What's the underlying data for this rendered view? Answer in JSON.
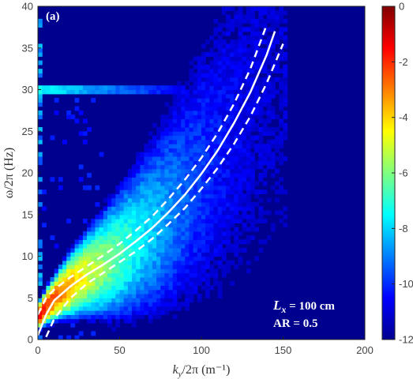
{
  "chart_data": {
    "type": "heatmap",
    "panel_label": "(a)",
    "xlabel": "k_y/2π (m⁻¹)",
    "ylabel": "ω/2π (Hz)",
    "xlim": [
      0,
      200
    ],
    "ylim": [
      0,
      40
    ],
    "x_ticks": [
      0,
      50,
      100,
      150,
      200
    ],
    "y_ticks": [
      0,
      5,
      10,
      15,
      20,
      25,
      30,
      35,
      40
    ],
    "colorbar": {
      "min": -12,
      "max": 0,
      "ticks": [
        0,
        -2,
        -4,
        -6,
        -8,
        -10,
        -12
      ],
      "colormap": "jet"
    },
    "annotations": [
      "L_x = 100 cm",
      "AR = 0.5"
    ],
    "background_level": -11.5,
    "ridge": {
      "x": [
        1,
        5,
        10,
        20,
        30,
        40,
        50,
        60,
        70,
        80,
        90,
        100,
        110,
        120,
        130,
        140,
        145
      ],
      "y": [
        3.0,
        4.0,
        5.0,
        6.6,
        7.9,
        9.0,
        10.3,
        11.8,
        13.4,
        15.3,
        17.4,
        19.8,
        22.5,
        25.5,
        29.0,
        33.5,
        36.5
      ],
      "peak_level": [
        -1.5,
        -1.8,
        -2.6,
        -3.6,
        -4.8,
        -5.8,
        -6.6,
        -7.4,
        -8.1,
        -8.8,
        -9.4,
        -9.9,
        -10.3,
        -10.6,
        -10.8,
        -11.0,
        -11.1
      ]
    },
    "horizontal_line": {
      "y": 30,
      "x_range": [
        0,
        90
      ],
      "level": -7.5
    },
    "theory_curve": {
      "x": [
        0,
        5,
        10,
        20,
        30,
        40,
        50,
        60,
        70,
        80,
        90,
        100,
        110,
        120,
        130,
        140,
        145
      ],
      "y": [
        0.5,
        3.0,
        4.7,
        6.4,
        7.8,
        9.0,
        10.3,
        11.8,
        13.4,
        15.3,
        17.4,
        19.9,
        22.7,
        26.0,
        29.7,
        34.2,
        37.0
      ],
      "color": "#ffffff"
    },
    "theory_upper": {
      "x": [
        0,
        5,
        10,
        20,
        30,
        40,
        50,
        60,
        70,
        80,
        90,
        100,
        110,
        120,
        130,
        140
      ],
      "y": [
        3.0,
        5.0,
        6.0,
        7.5,
        8.8,
        10.1,
        11.5,
        13.1,
        14.8,
        16.9,
        19.2,
        21.8,
        24.8,
        28.3,
        32.5,
        37.8
      ],
      "color": "#ffffff"
    },
    "theory_lower": {
      "x": [
        5,
        10,
        20,
        30,
        40,
        50,
        60,
        70,
        80,
        90,
        100,
        110,
        120,
        130,
        140,
        150
      ],
      "y": [
        0.3,
        2.5,
        5.0,
        6.7,
        8.0,
        9.3,
        10.6,
        12.1,
        13.9,
        15.8,
        18.1,
        20.6,
        23.5,
        26.8,
        30.8,
        35.5
      ],
      "color": "#ffffff"
    }
  }
}
